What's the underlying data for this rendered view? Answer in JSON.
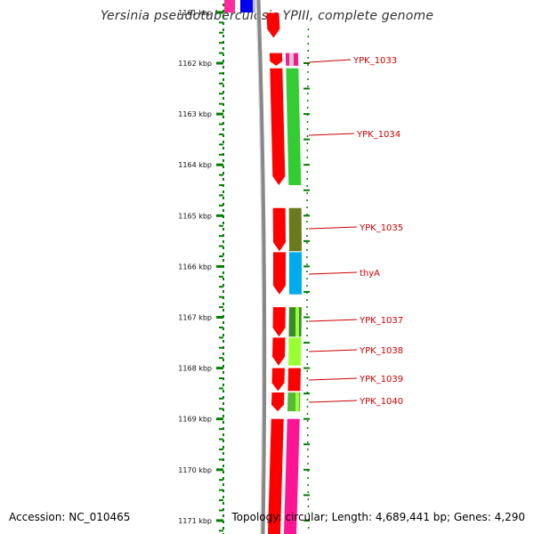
{
  "title": "Yersinia pseudotuberculosis YPIII, complete genome",
  "accession": "Accession: NC_010465",
  "summary": "Topology: circular; Length: 4,689,441 bp; Genes: 4,290",
  "colors": {
    "axis": "#008000",
    "backbone": "#888888",
    "cds": "#ff0000",
    "label": "#cc0000"
  },
  "kbp_ticks": [
    {
      "kbp": 1161,
      "label": "1161 kbp"
    },
    {
      "kbp": 1162,
      "label": "1162 kbp"
    },
    {
      "kbp": 1163,
      "label": "1163 kbp"
    },
    {
      "kbp": 1164,
      "label": "1164 kbp"
    },
    {
      "kbp": 1165,
      "label": "1165 kbp"
    },
    {
      "kbp": 1166,
      "label": "1166 kbp"
    },
    {
      "kbp": 1167,
      "label": "1167 kbp"
    },
    {
      "kbp": 1168,
      "label": "1168 kbp"
    },
    {
      "kbp": 1169,
      "label": "1169 kbp"
    },
    {
      "kbp": 1170,
      "label": "1170 kbp"
    },
    {
      "kbp": 1171,
      "label": "1171 kbp"
    }
  ],
  "genes": [
    {
      "name": "YPK_1033",
      "start_kbp": 1161.8,
      "end_kbp": 1162.05,
      "strand": "-",
      "color": "#ff1493"
    },
    {
      "name": "YPK_1034",
      "start_kbp": 1162.1,
      "end_kbp": 1164.4,
      "strand": "-",
      "color": "#33cc33"
    },
    {
      "name": "YPK_1035",
      "start_kbp": 1164.85,
      "end_kbp": 1165.7,
      "strand": "-",
      "color": "#6b7a1e"
    },
    {
      "name": "thyA",
      "start_kbp": 1165.72,
      "end_kbp": 1166.55,
      "strand": "-",
      "color": "#00aaee"
    },
    {
      "name": "YPK_1037",
      "start_kbp": 1166.8,
      "end_kbp": 1167.38,
      "strand": "-",
      "color": "#3a8a2a"
    },
    {
      "name": "YPK_1038",
      "start_kbp": 1167.4,
      "end_kbp": 1167.95,
      "strand": "-",
      "color": "#99ff33"
    },
    {
      "name": "YPK_1039",
      "start_kbp": 1168.0,
      "end_kbp": 1168.45,
      "strand": "-",
      "color": "#ff0000"
    },
    {
      "name": "YPK_1040",
      "start_kbp": 1168.48,
      "end_kbp": 1168.85,
      "strand": "-",
      "color": "#55bb33"
    }
  ]
}
